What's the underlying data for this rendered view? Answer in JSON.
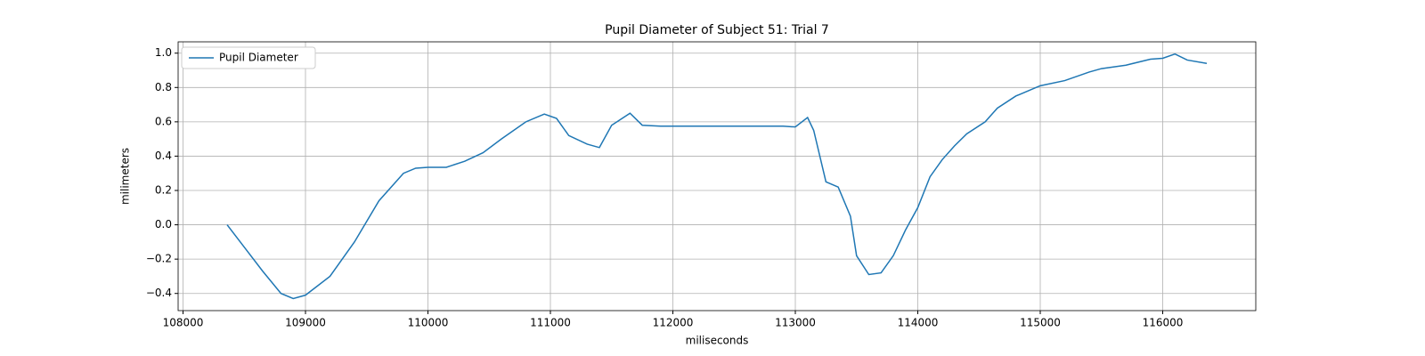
{
  "chart_data": {
    "type": "line",
    "title": "Pupil Diameter of Subject 51: Trial 7",
    "xlabel": "miliseconds",
    "ylabel": "milimeters",
    "x": [
      108360,
      108500,
      108650,
      108800,
      108900,
      109000,
      109200,
      109400,
      109600,
      109800,
      109900,
      110000,
      110150,
      110300,
      110450,
      110600,
      110800,
      110950,
      111050,
      111150,
      111300,
      111400,
      111500,
      111650,
      111750,
      111900,
      112500,
      112900,
      113000,
      113100,
      113150,
      113250,
      113350,
      113450,
      113500,
      113600,
      113700,
      113800,
      113900,
      114000,
      114100,
      114200,
      114300,
      114400,
      114550,
      114650,
      114800,
      115000,
      115200,
      115400,
      115500,
      115700,
      115900,
      116000,
      116100,
      116200,
      116360
    ],
    "series": [
      {
        "name": "Pupil Diameter",
        "color": "#1f77b4",
        "values": [
          0.0,
          -0.13,
          -0.27,
          -0.4,
          -0.43,
          -0.41,
          -0.3,
          -0.1,
          0.14,
          0.3,
          0.33,
          0.335,
          0.335,
          0.37,
          0.42,
          0.5,
          0.6,
          0.645,
          0.62,
          0.52,
          0.47,
          0.45,
          0.58,
          0.65,
          0.58,
          0.575,
          0.575,
          0.575,
          0.57,
          0.625,
          0.55,
          0.25,
          0.22,
          0.05,
          -0.18,
          -0.29,
          -0.28,
          -0.18,
          -0.03,
          0.1,
          0.28,
          0.38,
          0.46,
          0.53,
          0.6,
          0.68,
          0.75,
          0.81,
          0.84,
          0.89,
          0.91,
          0.93,
          0.965,
          0.97,
          0.995,
          0.96,
          0.94
        ]
      }
    ],
    "xlim": [
      107960,
      116760
    ],
    "ylim": [
      -0.5,
      1.066
    ],
    "xticks": [
      108000,
      109000,
      110000,
      111000,
      112000,
      113000,
      114000,
      115000,
      116000
    ],
    "yticks": [
      {
        "value": -0.4,
        "label": "−0.4"
      },
      {
        "value": -0.2,
        "label": "−0.2"
      },
      {
        "value": 0,
        "label": "0.0"
      },
      {
        "value": 0.2,
        "label": "0.2"
      },
      {
        "value": 0.4,
        "label": "0.4"
      },
      {
        "value": 0.6,
        "label": "0.6"
      },
      {
        "value": 0.8,
        "label": "0.8"
      },
      {
        "value": 1,
        "label": "1.0"
      }
    ],
    "grid": true,
    "legend": "upper left"
  }
}
